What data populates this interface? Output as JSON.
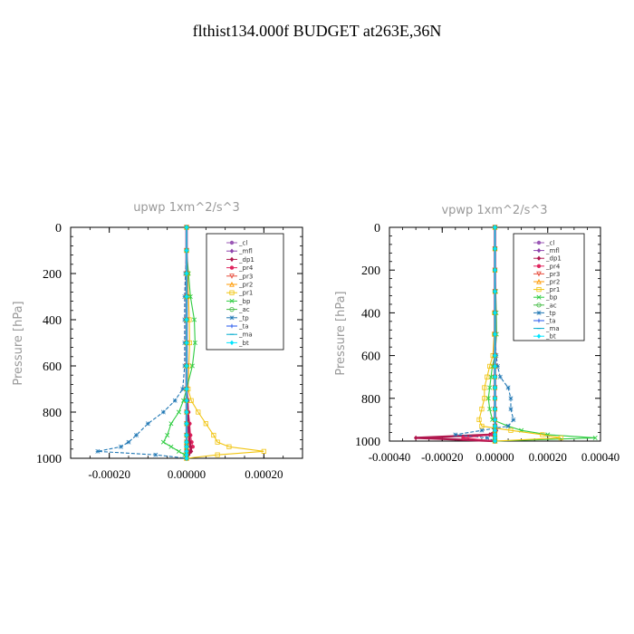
{
  "page_title": "flthist134.000f  BUDGET at263E,36N",
  "legend_entries": [
    "_cl",
    "_mfl",
    "_dp1",
    "_pr4",
    "_pr3",
    "_pr2",
    "_pr1",
    "_bp",
    "_ac",
    "_tp",
    "_ta",
    "_ma",
    "_bt"
  ],
  "series_colors": [
    "#9b59b6",
    "#8e44ad",
    "#b0174e",
    "#e0245e",
    "#e74c3c",
    "#ff9900",
    "#f1c40f",
    "#2ecc40",
    "#44bb44",
    "#1f77b4",
    "#2255ee",
    "#00aacc",
    "#00e5ff"
  ],
  "series_markers": [
    "circle",
    "diamond",
    "diamond",
    "circle",
    "triangle-down",
    "triangle",
    "square",
    "x",
    "circle-open",
    "star",
    "plus",
    "dash",
    "diamond"
  ],
  "chart_data": [
    {
      "type": "line",
      "title": "upwp   1xm^2/s^3",
      "ylabel": "Pressure [hPa]",
      "xlabel": "",
      "xlim": [
        -0.0003,
        0.0003
      ],
      "ylim": [
        1000,
        0
      ],
      "xticks": [
        "-0.00020",
        "0.00000",
        "0.00020"
      ],
      "xtick_values": [
        -0.0002,
        0,
        0.0002
      ],
      "yticks": [
        "0",
        "200",
        "400",
        "600",
        "800",
        "1000"
      ],
      "ytick_values": [
        0,
        200,
        400,
        600,
        800,
        1000
      ],
      "legend_position": "top-right",
      "y": [
        0,
        100,
        200,
        300,
        400,
        500,
        600,
        700,
        750,
        800,
        850,
        900,
        930,
        950,
        970,
        985,
        1000
      ],
      "series": [
        {
          "name": "_cl",
          "values": [
            0,
            0,
            0,
            0,
            0,
            0,
            0,
            0,
            0,
            0,
            0,
            0,
            0,
            0,
            0,
            0,
            0
          ]
        },
        {
          "name": "_mfl",
          "values": [
            0,
            0,
            0,
            0,
            0,
            0,
            0,
            0,
            0,
            0,
            0,
            0,
            0,
            0,
            0,
            0,
            0
          ]
        },
        {
          "name": "_dp1",
          "values": [
            0,
            0,
            0,
            0,
            0,
            0,
            0,
            0,
            2e-06,
            3e-06,
            5e-06,
            6e-06,
            8e-06,
            1e-05,
            1.2e-05,
            5e-06,
            0
          ]
        },
        {
          "name": "_pr4",
          "values": [
            0,
            0,
            0,
            0,
            0,
            0,
            0,
            0,
            3e-06,
            5e-06,
            8e-06,
            1e-05,
            1.3e-05,
            1.6e-05,
            8e-06,
            3e-06,
            0
          ]
        },
        {
          "name": "_pr3",
          "values": [
            0,
            0,
            0,
            0,
            0,
            0,
            0,
            0,
            0,
            0,
            0,
            0,
            0,
            0,
            0,
            0,
            0
          ]
        },
        {
          "name": "_pr2",
          "values": [
            0,
            0,
            0,
            0,
            0,
            0,
            0,
            0,
            0,
            0,
            0,
            0,
            0,
            0,
            0,
            0,
            0
          ]
        },
        {
          "name": "_pr1",
          "values": [
            0,
            0,
            3e-06,
            5e-06,
            7e-06,
            8e-06,
            6e-06,
            4e-06,
            1.2e-05,
            3e-05,
            5e-05,
            7e-05,
            8e-05,
            0.00011,
            0.0002,
            8e-05,
            0
          ]
        },
        {
          "name": "_bp",
          "values": [
            0,
            0,
            5e-06,
            1e-05,
            2e-05,
            2.2e-05,
            1.5e-05,
            0,
            -8e-06,
            -2e-05,
            -4e-05,
            -5e-05,
            -6e-05,
            -4e-05,
            -2e-05,
            -5e-06,
            0
          ]
        },
        {
          "name": "_ac",
          "values": [
            0,
            0,
            0,
            0,
            0,
            0,
            0,
            0,
            0,
            0,
            0,
            0,
            0,
            0,
            0,
            0,
            0
          ]
        },
        {
          "name": "_tp",
          "values": [
            0,
            0,
            -3e-06,
            -5e-06,
            -5e-06,
            -5e-06,
            -5e-06,
            -1e-05,
            -3e-05,
            -6e-05,
            -0.0001,
            -0.00013,
            -0.00015,
            -0.00017,
            -0.00023,
            -8e-05,
            0
          ]
        },
        {
          "name": "_ta",
          "values": [
            0,
            0,
            0,
            0,
            0,
            0,
            0,
            0,
            0,
            0,
            0,
            0,
            0,
            0,
            0,
            0,
            0
          ]
        },
        {
          "name": "_ma",
          "values": [
            0,
            0,
            0,
            0,
            0,
            0,
            0,
            0,
            0,
            0,
            0,
            0,
            0,
            0,
            0,
            0,
            0
          ]
        },
        {
          "name": "_bt",
          "values": [
            0,
            0,
            0,
            0,
            0,
            0,
            0,
            0,
            0,
            0,
            0,
            0,
            0,
            0,
            0,
            0,
            0
          ]
        }
      ]
    },
    {
      "type": "line",
      "title": "vpwp   1xm^2/s^3",
      "ylabel": "Pressure [hPa]",
      "xlabel": "",
      "xlim": [
        -0.0004,
        0.0004
      ],
      "ylim": [
        1000,
        0
      ],
      "xticks": [
        "-0.00040",
        "-0.00020",
        "0.00000",
        "0.00020",
        "0.00040"
      ],
      "xtick_values": [
        -0.0004,
        -0.0002,
        0,
        0.0002,
        0.0004
      ],
      "yticks": [
        "0",
        "200",
        "400",
        "600",
        "800",
        "1000"
      ],
      "ytick_values": [
        0,
        200,
        400,
        600,
        800,
        1000
      ],
      "legend_position": "top-right",
      "y": [
        0,
        100,
        200,
        300,
        400,
        500,
        600,
        650,
        700,
        750,
        800,
        850,
        900,
        930,
        950,
        970,
        985,
        1000
      ],
      "series": [
        {
          "name": "_cl",
          "values": [
            0,
            0,
            0,
            0,
            0,
            0,
            0,
            0,
            0,
            0,
            0,
            0,
            0,
            0,
            0,
            0,
            0,
            0
          ]
        },
        {
          "name": "_mfl",
          "values": [
            0,
            0,
            0,
            0,
            0,
            0,
            0,
            0,
            0,
            0,
            0,
            0,
            0,
            0,
            0,
            0,
            0,
            0
          ]
        },
        {
          "name": "_dp1",
          "values": [
            0,
            0,
            0,
            0,
            0,
            0,
            0,
            0,
            0,
            0,
            0,
            0,
            0,
            3e-06,
            5e-06,
            -2e-05,
            -0.0003,
            0
          ]
        },
        {
          "name": "_pr4",
          "values": [
            0,
            0,
            0,
            0,
            0,
            0,
            0,
            0,
            0,
            0,
            0,
            0,
            0,
            0,
            4e-06,
            -1e-05,
            -0.00012,
            0
          ]
        },
        {
          "name": "_pr3",
          "values": [
            0,
            0,
            0,
            0,
            0,
            0,
            0,
            0,
            0,
            0,
            0,
            0,
            0,
            0,
            0,
            0,
            0,
            0
          ]
        },
        {
          "name": "_pr2",
          "values": [
            0,
            0,
            0,
            0,
            0,
            0,
            0,
            0,
            0,
            0,
            0,
            0,
            0,
            0,
            0,
            0,
            0,
            0
          ]
        },
        {
          "name": "_pr1",
          "values": [
            0,
            0,
            0,
            0,
            -2e-06,
            -3e-06,
            -8e-06,
            -2e-05,
            -3e-05,
            -4e-05,
            -4e-05,
            -5e-05,
            -6e-05,
            -5e-05,
            6e-05,
            0.00018,
            0.00025,
            0
          ]
        },
        {
          "name": "_bp",
          "values": [
            0,
            0,
            0,
            3e-06,
            5e-06,
            6e-06,
            0,
            -1e-05,
            -1.5e-05,
            -2e-05,
            -2.5e-05,
            -2e-05,
            -1e-05,
            5e-05,
            0.0001,
            0.0002,
            0.00038,
            0
          ]
        },
        {
          "name": "_ac",
          "values": [
            0,
            0,
            0,
            0,
            0,
            0,
            0,
            0,
            0,
            0,
            0,
            0,
            0,
            0,
            0,
            0,
            0,
            0
          ]
        },
        {
          "name": "_tp",
          "values": [
            0,
            0,
            0,
            0,
            0,
            0,
            5e-06,
            1e-05,
            2e-05,
            5e-05,
            6e-05,
            6e-05,
            7e-05,
            5e-05,
            -5e-05,
            -0.00015,
            -3e-05,
            0
          ]
        },
        {
          "name": "_ta",
          "values": [
            0,
            0,
            0,
            0,
            0,
            0,
            0,
            0,
            0,
            0,
            0,
            0,
            0,
            0,
            0,
            0,
            0,
            0
          ]
        },
        {
          "name": "_ma",
          "values": [
            0,
            0,
            0,
            0,
            0,
            0,
            0,
            0,
            0,
            0,
            0,
            0,
            0,
            0,
            0,
            0,
            0,
            0
          ]
        },
        {
          "name": "_bt",
          "values": [
            0,
            0,
            0,
            0,
            0,
            0,
            0,
            0,
            0,
            0,
            0,
            0,
            0,
            0,
            0,
            0,
            0,
            0
          ]
        }
      ]
    }
  ]
}
